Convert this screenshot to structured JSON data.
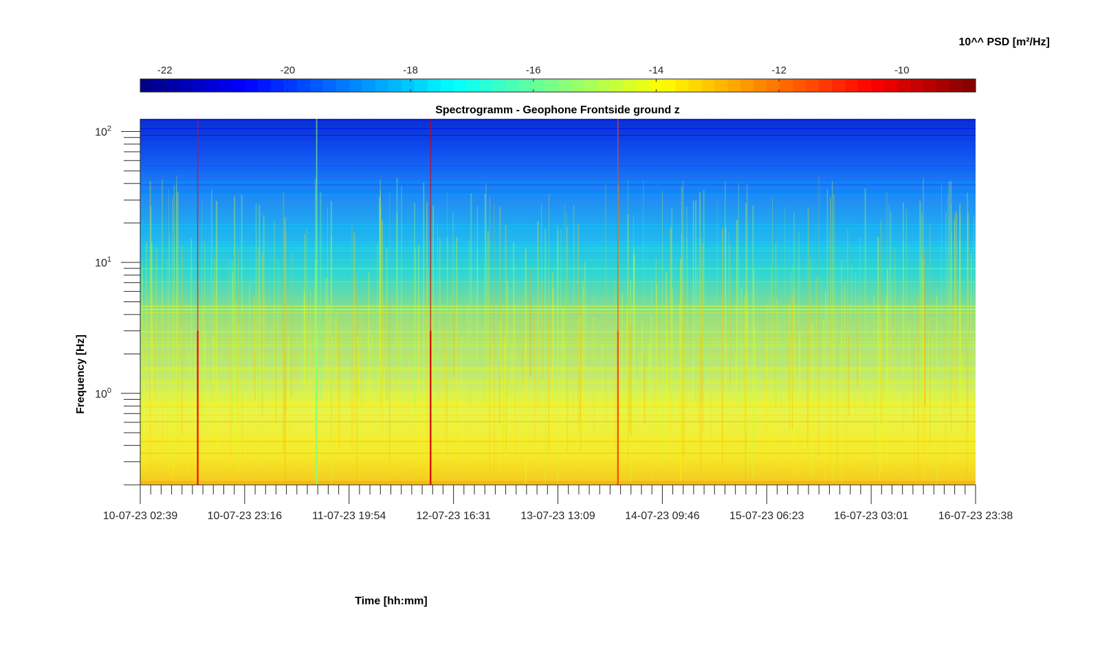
{
  "chart_data": {
    "type": "heatmap",
    "title": "Spectrogramm - Geophone Frontside ground z",
    "xlabel": "Time [hh:mm]",
    "ylabel": "Frequency [Hz]",
    "colorbar_label": "10^^ PSD [m²/Hz]",
    "colormap": "jet",
    "color_range": [
      -22.4,
      -8.8
    ],
    "colorbar_ticks": [
      "-22",
      "-20",
      "-18",
      "-16",
      "-14",
      "-12",
      "-10"
    ],
    "colorbar_tick_values": [
      -22,
      -20,
      -18,
      -16,
      -14,
      -12,
      -10
    ],
    "y_scale": "log",
    "ylim": [
      0.2,
      125
    ],
    "y_ticks": [
      {
        "value": 1,
        "base": "10",
        "exp": "0"
      },
      {
        "value": 10,
        "base": "10",
        "exp": "1"
      },
      {
        "value": 100,
        "base": "10",
        "exp": "2"
      }
    ],
    "x_ticks": [
      "10-07-23 02:39",
      "10-07-23 23:16",
      "11-07-23 19:54",
      "12-07-23 16:31",
      "13-07-23 13:09",
      "14-07-23 09:46",
      "15-07-23 06:23",
      "16-07-23 03:01",
      "16-07-23 23:38"
    ],
    "x_minor_ticks_per_major": 10,
    "frequency_profile": {
      "frequency_hz": [
        0.2,
        0.3,
        0.5,
        1,
        2,
        3,
        5,
        8,
        12,
        20,
        40,
        80,
        125
      ],
      "psd_log10": [
        -12.7,
        -13.2,
        -13.6,
        -14.3,
        -14.6,
        -14.0,
        -14.8,
        -16.2,
        -17.5,
        -18.6,
        -19.5,
        -20.6,
        -21.2
      ]
    },
    "transient_events": [
      {
        "time": "10-07-23 14:00",
        "peak_psd_log10": -10.5
      },
      {
        "time": "11-07-23 13:30",
        "peak_psd_log10": -15.5
      },
      {
        "time": "12-07-23 12:00",
        "peak_psd_log10": -10.0
      },
      {
        "time": "14-07-23 01:00",
        "peak_psd_log10": -11.5
      }
    ],
    "grid": false
  }
}
